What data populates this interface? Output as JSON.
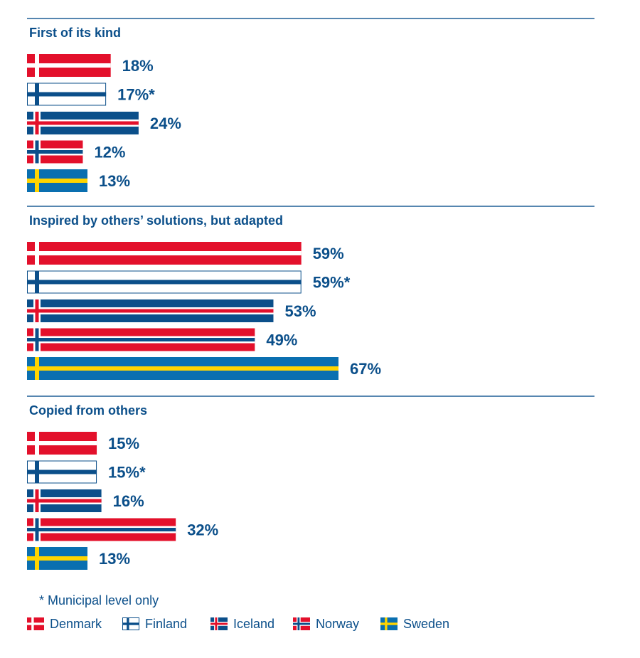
{
  "colors": {
    "text": "#0b4f8a",
    "rule": "#1f5f95",
    "denmark_red": "#e3102b",
    "finland_blue": "#0b4f8a",
    "iceland_blue": "#0b4f8a",
    "iceland_red": "#e3102b",
    "norway_red": "#e3102b",
    "norway_blue": "#0b4f8a",
    "sweden_blue": "#0a6fb0",
    "sweden_yellow": "#ffd400"
  },
  "chart_data": {
    "type": "bar",
    "orientation": "horizontal",
    "value_suffix": "%",
    "xlim": [
      0,
      100
    ],
    "countries": [
      "Denmark",
      "Finland",
      "Iceland",
      "Norway",
      "Sweden"
    ],
    "groups": [
      {
        "title": "First of its kind",
        "values": [
          18,
          17,
          24,
          12,
          13
        ],
        "labels": [
          "18%",
          "17%*",
          "24%",
          "12%",
          "13%"
        ]
      },
      {
        "title": "Inspired by others’ solutions, but adapted",
        "values": [
          59,
          59,
          53,
          49,
          67
        ],
        "labels": [
          "59%",
          "59%*",
          "53%",
          "49%",
          "67%"
        ]
      },
      {
        "title": "Copied from others",
        "values": [
          15,
          15,
          16,
          32,
          13
        ],
        "labels": [
          "15%",
          "15%*",
          "16%",
          "32%",
          "13%"
        ]
      }
    ]
  },
  "footnote": "* Municipal level only",
  "legend": [
    {
      "name": "Denmark",
      "flag": "denmark"
    },
    {
      "name": "Finland",
      "flag": "finland"
    },
    {
      "name": "Iceland",
      "flag": "iceland"
    },
    {
      "name": "Norway",
      "flag": "norway"
    },
    {
      "name": "Sweden",
      "flag": "sweden"
    }
  ]
}
